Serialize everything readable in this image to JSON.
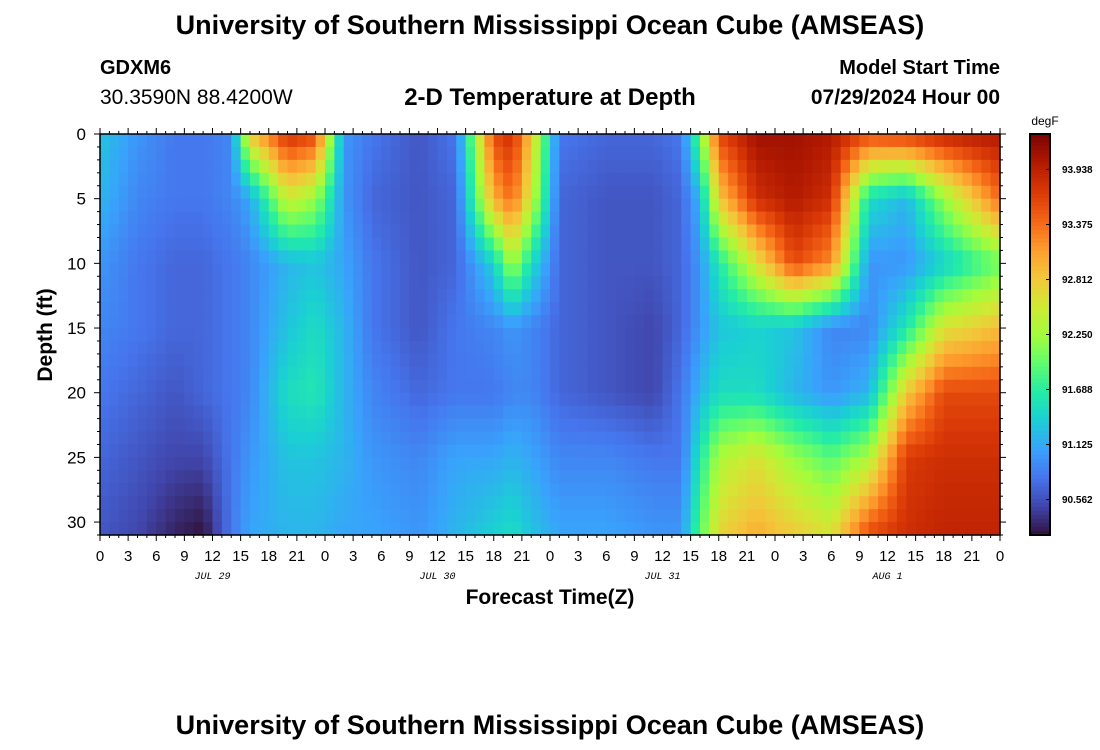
{
  "header": {
    "title": "University of Southern Mississippi Ocean Cube (AMSEAS)",
    "station_id": "GDXM6",
    "coords": "30.3590N  88.4200W",
    "subtitle": "2-D Temperature at Depth",
    "start_label": "Model Start Time",
    "start_value": "07/29/2024 Hour 00"
  },
  "footer": {
    "title": "University of Southern Mississippi Ocean Cube (AMSEAS)"
  },
  "chart_data": {
    "type": "heatmap",
    "title": "2-D Temperature at Depth",
    "xlabel": "Forecast Time(Z)",
    "ylabel": "Depth (ft)",
    "x_hours_range": [
      0,
      96
    ],
    "x_tick_labels": [
      "0",
      "3",
      "6",
      "9",
      "12",
      "15",
      "18",
      "21",
      "0",
      "3",
      "6",
      "9",
      "12",
      "15",
      "18",
      "21",
      "0",
      "3",
      "6",
      "9",
      "12",
      "15",
      "18",
      "21",
      "0",
      "3",
      "6",
      "9",
      "12",
      "15",
      "18",
      "21",
      "0"
    ],
    "x_tick_hours": [
      0,
      3,
      6,
      9,
      12,
      15,
      18,
      21,
      24,
      27,
      30,
      33,
      36,
      39,
      42,
      45,
      48,
      51,
      54,
      57,
      60,
      63,
      66,
      69,
      72,
      75,
      78,
      81,
      84,
      87,
      90,
      93,
      96
    ],
    "day_labels": [
      {
        "label": "JUL 29",
        "hour": 12
      },
      {
        "label": "JUL 30",
        "hour": 36
      },
      {
        "label": "JUL 31",
        "hour": 60
      },
      {
        "label": "AUG 1",
        "hour": 84
      }
    ],
    "y_range": [
      0,
      31
    ],
    "y_ticks": [
      0,
      5,
      10,
      15,
      20,
      25,
      30
    ],
    "colorbar": {
      "unit": "degF",
      "range": [
        90.2,
        94.3
      ],
      "tick_values": [
        93.938,
        93.375,
        92.812,
        92.25,
        91.688,
        91.125,
        90.562
      ],
      "tick_labels": [
        "93.938",
        "93.375",
        "92.812",
        "92.250",
        "91.688",
        "91.125",
        "90.562"
      ],
      "colors": [
        "#30123b",
        "#4145ab",
        "#4675ed",
        "#39a2fc",
        "#1bcfd4",
        "#24eca6",
        "#61fc6c",
        "#a4fc3b",
        "#d1e834",
        "#f3c63a",
        "#fe9b2d",
        "#f36315",
        "#d93806",
        "#b11901",
        "#7a0403"
      ]
    },
    "grid": false,
    "legend": "colorbar right",
    "profiles": [
      {
        "hour": 0,
        "depths": [
          0,
          5,
          10,
          15,
          20,
          25,
          31
        ],
        "values": [
          91.3,
          91.2,
          91.0,
          90.9,
          90.8,
          90.7,
          90.6
        ]
      },
      {
        "hour": 4,
        "depths": [
          0,
          5,
          10,
          15,
          20,
          25,
          31
        ],
        "values": [
          91.0,
          90.9,
          90.8,
          90.8,
          90.7,
          90.6,
          90.5
        ]
      },
      {
        "hour": 8,
        "depths": [
          0,
          5,
          10,
          15,
          20,
          25,
          31
        ],
        "values": [
          90.8,
          90.8,
          90.7,
          90.7,
          90.6,
          90.5,
          90.3
        ]
      },
      {
        "hour": 11,
        "depths": [
          0,
          5,
          10,
          15,
          20,
          25,
          31
        ],
        "values": [
          90.8,
          90.8,
          90.7,
          90.7,
          90.7,
          90.5,
          90.2
        ]
      },
      {
        "hour": 14,
        "depths": [
          0,
          5,
          10,
          15,
          20,
          25,
          31
        ],
        "values": [
          90.9,
          90.9,
          90.8,
          90.8,
          90.8,
          90.8,
          90.8
        ]
      },
      {
        "hour": 16,
        "depths": [
          0,
          5,
          10,
          15,
          20,
          25,
          31
        ],
        "values": [
          92.8,
          91.1,
          90.9,
          90.9,
          90.9,
          91.0,
          91.1
        ]
      },
      {
        "hour": 20,
        "depths": [
          0,
          5,
          10,
          15,
          20,
          25,
          31
        ],
        "values": [
          93.8,
          92.5,
          91.2,
          91.3,
          91.5,
          91.3,
          91.2
        ]
      },
      {
        "hour": 23,
        "depths": [
          0,
          5,
          10,
          15,
          20,
          25,
          31
        ],
        "values": [
          93.6,
          92.2,
          91.3,
          91.5,
          91.6,
          91.3,
          91.2
        ]
      },
      {
        "hour": 26,
        "depths": [
          0,
          5,
          10,
          15,
          20,
          25,
          31
        ],
        "values": [
          91.0,
          91.0,
          91.1,
          91.2,
          91.2,
          91.2,
          91.1
        ]
      },
      {
        "hour": 29,
        "depths": [
          0,
          5,
          10,
          15,
          20,
          25,
          31
        ],
        "values": [
          90.8,
          90.7,
          90.8,
          90.8,
          90.9,
          91.0,
          91.1
        ]
      },
      {
        "hour": 34,
        "depths": [
          0,
          5,
          10,
          15,
          20,
          25,
          31
        ],
        "values": [
          90.6,
          90.6,
          90.6,
          90.6,
          90.7,
          90.9,
          91.0
        ]
      },
      {
        "hour": 38,
        "depths": [
          0,
          5,
          10,
          15,
          20,
          25,
          31
        ],
        "values": [
          90.8,
          90.7,
          90.7,
          90.8,
          90.8,
          91.1,
          91.2
        ]
      },
      {
        "hour": 42,
        "depths": [
          0,
          5,
          10,
          15,
          20,
          25,
          31
        ],
        "values": [
          93.6,
          93.0,
          91.4,
          90.9,
          90.8,
          91.1,
          91.4
        ]
      },
      {
        "hour": 44,
        "depths": [
          0,
          5,
          10,
          15,
          20,
          25,
          31
        ],
        "values": [
          93.8,
          93.4,
          92.3,
          91.0,
          90.9,
          91.2,
          91.5
        ]
      },
      {
        "hour": 46,
        "depths": [
          0,
          5,
          10,
          15,
          20,
          25,
          31
        ],
        "values": [
          92.8,
          92.5,
          91.5,
          90.9,
          90.9,
          91.1,
          91.3
        ]
      },
      {
        "hour": 49,
        "depths": [
          0,
          5,
          10,
          15,
          20,
          25,
          31
        ],
        "values": [
          90.8,
          90.7,
          90.7,
          90.7,
          90.7,
          90.9,
          91.1
        ]
      },
      {
        "hour": 54,
        "depths": [
          0,
          5,
          10,
          15,
          20,
          25,
          31
        ],
        "values": [
          90.7,
          90.6,
          90.6,
          90.6,
          90.6,
          90.9,
          91.1
        ]
      },
      {
        "hour": 59,
        "depths": [
          0,
          5,
          10,
          15,
          20,
          25,
          31
        ],
        "values": [
          90.7,
          90.6,
          90.6,
          90.5,
          90.5,
          90.8,
          91.0
        ]
      },
      {
        "hour": 62,
        "depths": [
          0,
          5,
          10,
          15,
          20,
          25,
          31
        ],
        "values": [
          90.8,
          90.7,
          90.7,
          90.7,
          90.8,
          90.8,
          91.0
        ]
      },
      {
        "hour": 64,
        "depths": [
          0,
          5,
          10,
          15,
          20,
          25,
          31
        ],
        "values": [
          92.0,
          91.2,
          91.0,
          91.0,
          91.2,
          91.6,
          91.9
        ]
      },
      {
        "hour": 66,
        "depths": [
          0,
          5,
          10,
          15,
          20,
          25,
          31
        ],
        "values": [
          93.6,
          92.8,
          91.6,
          91.3,
          91.5,
          92.3,
          92.7
        ]
      },
      {
        "hour": 70,
        "depths": [
          0,
          5,
          10,
          15,
          20,
          25,
          31
        ],
        "values": [
          94.1,
          93.8,
          92.6,
          91.4,
          91.5,
          92.6,
          93.0
        ]
      },
      {
        "hour": 74,
        "depths": [
          0,
          5,
          10,
          15,
          20,
          25,
          31
        ],
        "values": [
          94.1,
          94.0,
          93.6,
          91.3,
          91.2,
          92.2,
          92.8
        ]
      },
      {
        "hour": 78,
        "depths": [
          0,
          5,
          10,
          15,
          20,
          25,
          31
        ],
        "values": [
          94.0,
          93.8,
          93.2,
          90.9,
          91.0,
          91.9,
          92.6
        ]
      },
      {
        "hour": 82,
        "depths": [
          0,
          5,
          10,
          15,
          20,
          25,
          31
        ],
        "values": [
          93.6,
          91.5,
          91.0,
          90.9,
          91.2,
          92.3,
          93.6
        ]
      },
      {
        "hour": 86,
        "depths": [
          0,
          5,
          10,
          15,
          20,
          25,
          31
        ],
        "values": [
          93.7,
          91.2,
          91.0,
          91.6,
          92.8,
          93.7,
          93.8
        ]
      },
      {
        "hour": 90,
        "depths": [
          0,
          5,
          10,
          15,
          20,
          25,
          31
        ],
        "values": [
          93.9,
          92.2,
          91.4,
          92.6,
          93.6,
          93.8,
          93.9
        ]
      },
      {
        "hour": 94,
        "depths": [
          0,
          5,
          10,
          15,
          20,
          25,
          31
        ],
        "values": [
          94.0,
          93.0,
          91.8,
          92.8,
          93.6,
          93.8,
          93.9
        ]
      },
      {
        "hour": 96,
        "depths": [
          0,
          5,
          10,
          15,
          20,
          25,
          31
        ],
        "values": [
          94.0,
          93.4,
          92.0,
          92.9,
          93.6,
          93.8,
          93.9
        ]
      }
    ]
  }
}
